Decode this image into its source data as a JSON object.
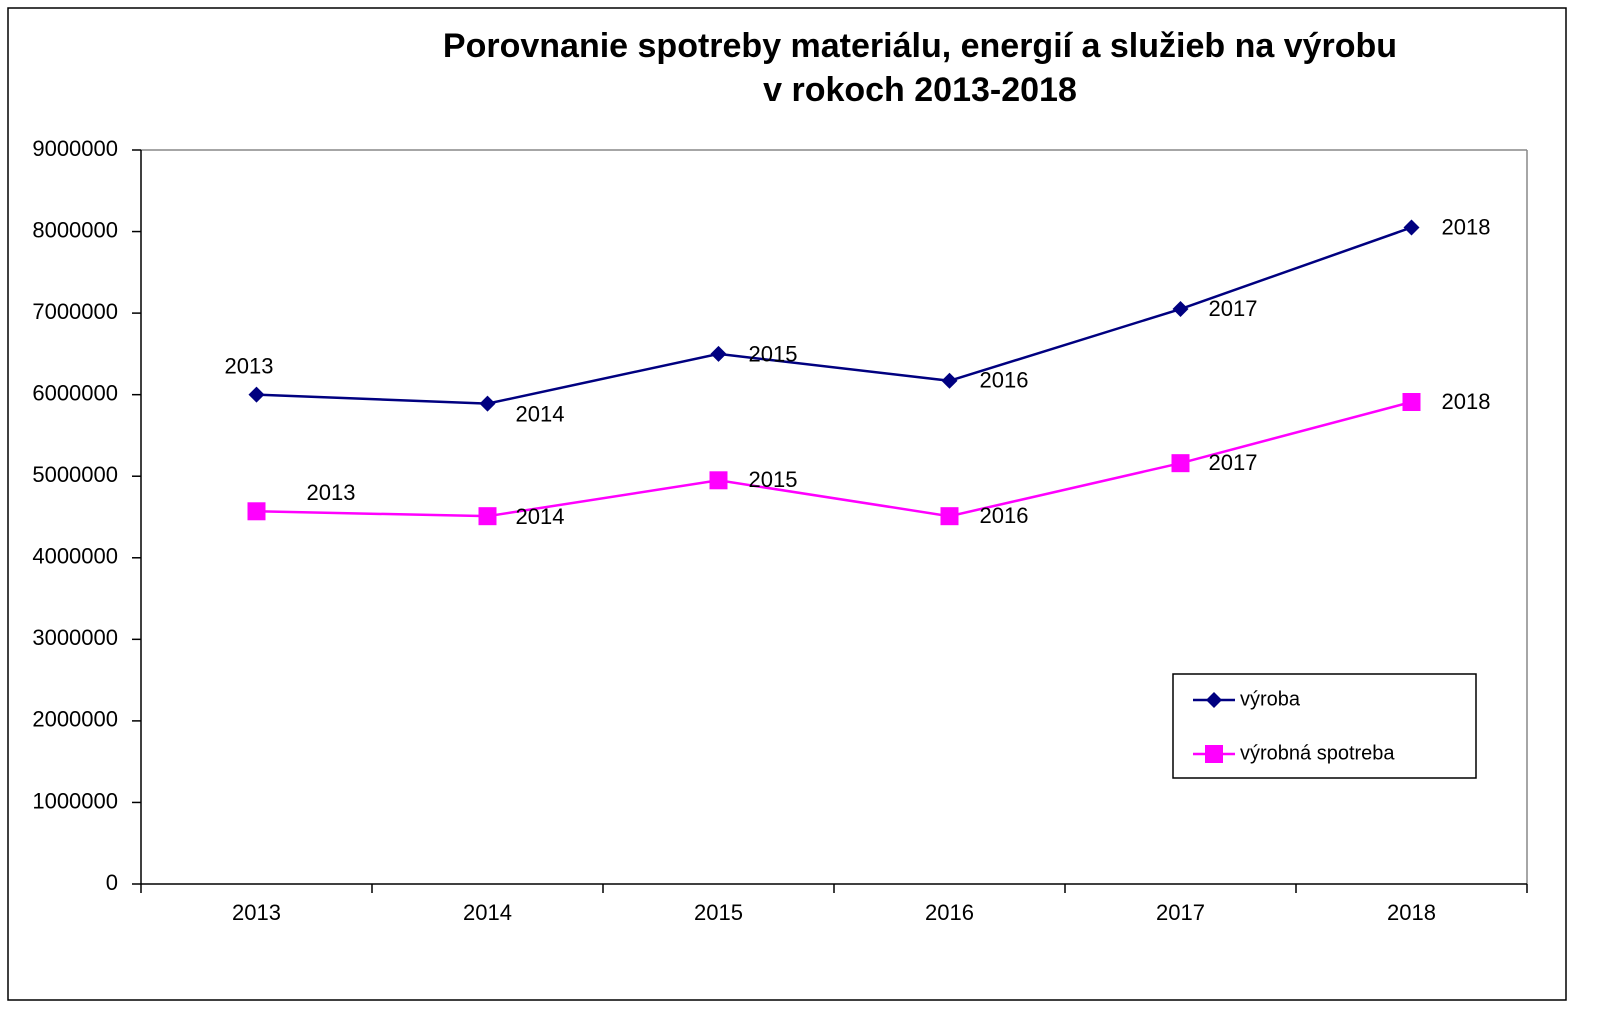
{
  "chart_data": {
    "type": "line",
    "title": [
      "Porovnanie spotreby materiálu, energií a služieb na výrobu",
      "v rokoch 2013-2018"
    ],
    "categories": [
      "2013",
      "2014",
      "2015",
      "2016",
      "2017",
      "2018"
    ],
    "series": [
      {
        "name": "výroba",
        "color": "#000080",
        "marker": "diamond",
        "values": [
          6000000,
          5890000,
          6500000,
          6170000,
          7050000,
          8050000
        ]
      },
      {
        "name": "výrobná spotreba",
        "color": "#ff00ff",
        "marker": "square",
        "values": [
          4570000,
          4510000,
          4950000,
          4510000,
          5160000,
          5910000
        ]
      }
    ],
    "ylim": [
      0,
      9000000
    ],
    "yticks": [
      0,
      1000000,
      2000000,
      3000000,
      4000000,
      5000000,
      6000000,
      7000000,
      8000000,
      9000000
    ],
    "grid": false,
    "legend": "lower right"
  }
}
